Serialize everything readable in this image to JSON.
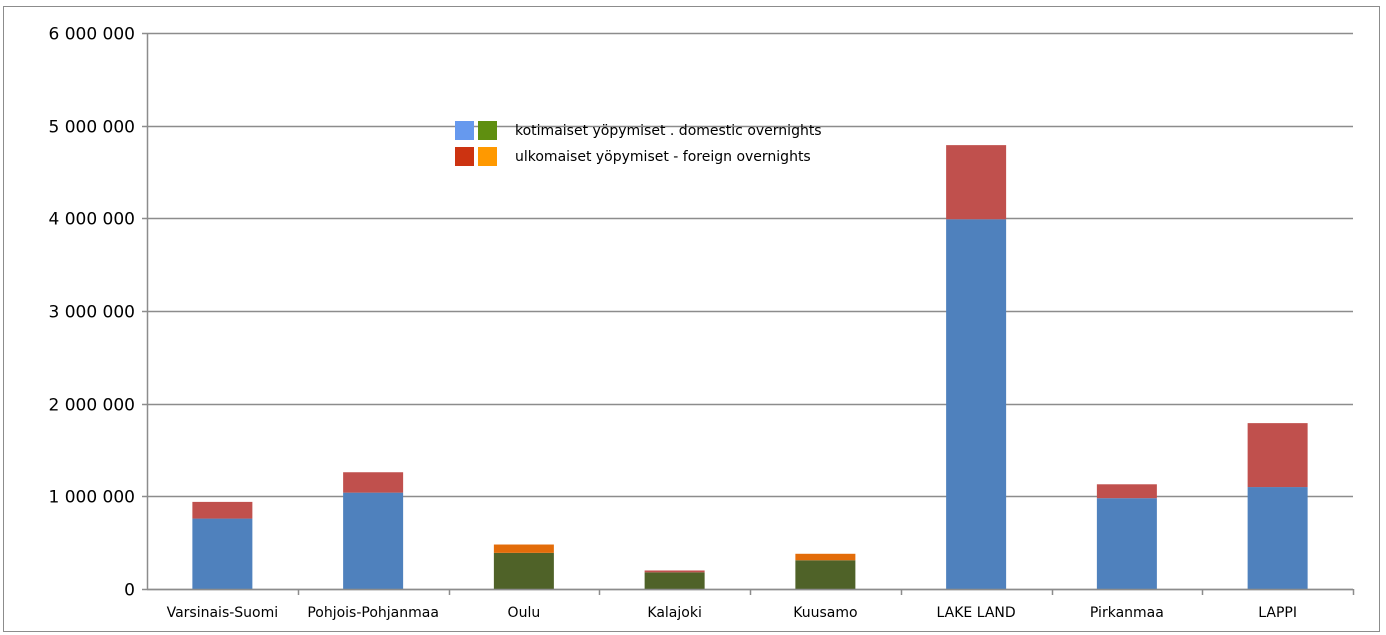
{
  "chart_data": {
    "type": "bar",
    "stacked": true,
    "title": "",
    "xlabel": "",
    "ylabel": "",
    "ylim": [
      0,
      6000000
    ],
    "yticks": [
      0,
      1000000,
      2000000,
      3000000,
      4000000,
      5000000,
      6000000
    ],
    "ytick_labels": [
      "0",
      "1 000 000",
      "2 000 000",
      "3 000 000",
      "4 000 000",
      "5 000 000",
      "6 000 000"
    ],
    "grid": true,
    "legend_position": "top-center",
    "categories": [
      "Varsinais-Suomi",
      "Pohjois-Pohjanmaa",
      "Oulu",
      "Kalajoki",
      "Kuusamo",
      "LAKE LAND",
      "Pirkanmaa",
      "LAPPI"
    ],
    "series": [
      {
        "name": "kotimaiset yöpymiset . domestic overnights",
        "values": [
          760000,
          1040000,
          390000,
          180000,
          310000,
          3990000,
          980000,
          1100000
        ],
        "colors": [
          "#4f81bd",
          "#4f81bd",
          "#4f6228",
          "#4f6228",
          "#4f6228",
          "#4f81bd",
          "#4f81bd",
          "#4f81bd"
        ]
      },
      {
        "name": "ulkomaiset yöpymiset - foreign overnights",
        "values": [
          180000,
          220000,
          90000,
          20000,
          70000,
          800000,
          150000,
          690000
        ],
        "colors": [
          "#c0504d",
          "#c0504d",
          "#e36c09",
          "#c0504d",
          "#e36c09",
          "#c0504d",
          "#c0504d",
          "#c0504d"
        ]
      }
    ],
    "legend": [
      {
        "label": "kotimaiset yöpymiset . domestic overnights",
        "swatches": [
          "#6699ee",
          "#5f8f10"
        ]
      },
      {
        "label": "ulkomaiset yöpymiset - foreign overnights",
        "swatches": [
          "#cc3311",
          "#ff9900"
        ]
      }
    ]
  }
}
